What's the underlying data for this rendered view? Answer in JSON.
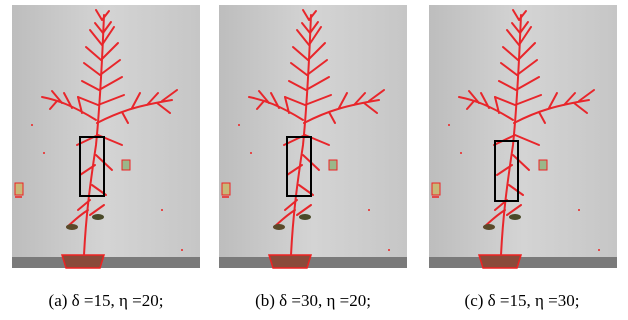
{
  "panels": [
    {
      "caption": "(a) δ =15, η =20;"
    },
    {
      "caption": "(b) δ =30, η =20;"
    },
    {
      "caption": "(c) δ =15, η =30;"
    }
  ]
}
